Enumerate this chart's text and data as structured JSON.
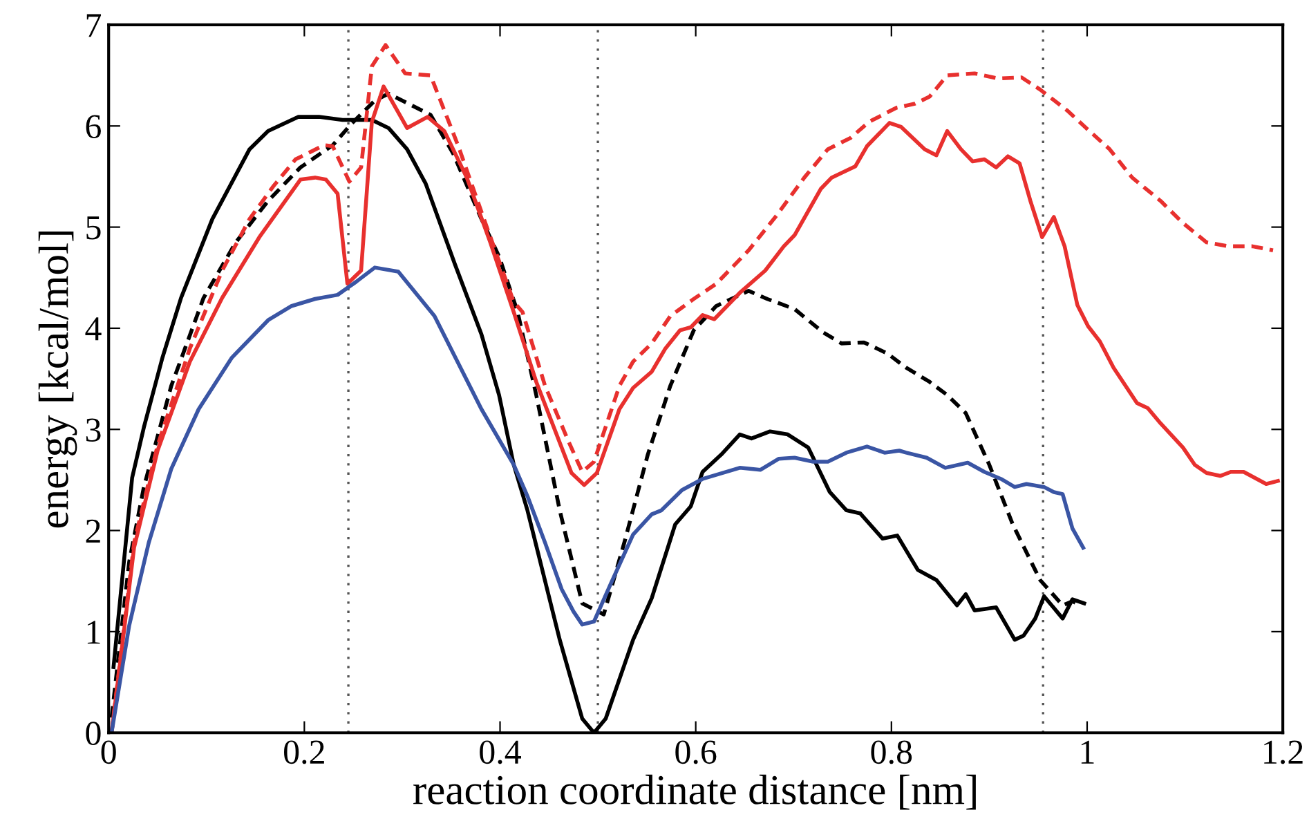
{
  "chart_data": {
    "type": "line",
    "xlabel": "reaction coordinate distance [nm]",
    "ylabel": "energy [kcal/mol]",
    "xlim": [
      0,
      1.2
    ],
    "ylim": [
      0,
      7
    ],
    "xticks": [
      0,
      0.2,
      0.4,
      0.6,
      0.8,
      1,
      1.2
    ],
    "yticks": [
      0,
      1,
      2,
      3,
      4,
      5,
      6,
      7
    ],
    "grid": false,
    "marker": "none",
    "ref_lines": [
      {
        "axis": "x",
        "value": 0.245,
        "color": "#555555",
        "line_style": "dotted"
      },
      {
        "axis": "x",
        "value": 0.5,
        "color": "#555555",
        "line_style": "dotted"
      },
      {
        "axis": "x",
        "value": 0.955,
        "color": "#555555",
        "line_style": "dotted"
      }
    ],
    "series": [
      {
        "color": "#000000",
        "line_style": "solid",
        "x": [
          0.005,
          0.024,
          0.036,
          0.055,
          0.074,
          0.106,
          0.144,
          0.163,
          0.194,
          0.215,
          0.239,
          0.269,
          0.286,
          0.305,
          0.324,
          0.354,
          0.381,
          0.399,
          0.414,
          0.428,
          0.461,
          0.484,
          0.496,
          0.508,
          0.536,
          0.555,
          0.579,
          0.595,
          0.607,
          0.626,
          0.645,
          0.657,
          0.676,
          0.694,
          0.715,
          0.737,
          0.754,
          0.768,
          0.791,
          0.806,
          0.827,
          0.846,
          0.867,
          0.876,
          0.885,
          0.907,
          0.926,
          0.935,
          0.947,
          0.956,
          0.975,
          0.985,
          0.997
        ],
        "values": [
          0.65,
          2.52,
          3.02,
          3.71,
          4.3,
          5.08,
          5.77,
          5.95,
          6.09,
          6.09,
          6.06,
          6.06,
          5.98,
          5.77,
          5.43,
          4.63,
          3.94,
          3.34,
          2.65,
          2.2,
          0.92,
          0.14,
          0.0,
          0.14,
          0.92,
          1.33,
          2.06,
          2.24,
          2.58,
          2.75,
          2.95,
          2.91,
          2.98,
          2.95,
          2.82,
          2.38,
          2.2,
          2.17,
          1.92,
          1.95,
          1.61,
          1.51,
          1.26,
          1.37,
          1.21,
          1.24,
          0.92,
          0.96,
          1.13,
          1.35,
          1.13,
          1.32,
          1.28
        ]
      },
      {
        "color": "#000000",
        "line_style": "dashed",
        "x": [
          0.003,
          0.021,
          0.036,
          0.064,
          0.097,
          0.13,
          0.163,
          0.196,
          0.229,
          0.248,
          0.272,
          0.286,
          0.329,
          0.352,
          0.381,
          0.399,
          0.418,
          0.437,
          0.461,
          0.484,
          0.506,
          0.527,
          0.551,
          0.574,
          0.598,
          0.621,
          0.654,
          0.673,
          0.701,
          0.73,
          0.749,
          0.772,
          0.796,
          0.815,
          0.839,
          0.857,
          0.876,
          0.9,
          0.924,
          0.952,
          0.975,
          0.985,
          0.994
        ],
        "values": [
          0.15,
          1.69,
          2.43,
          3.43,
          4.3,
          4.85,
          5.26,
          5.59,
          5.81,
          6.02,
          6.25,
          6.32,
          6.11,
          5.73,
          5.08,
          4.71,
          4.16,
          3.34,
          2.2,
          1.28,
          1.17,
          1.88,
          2.75,
          3.43,
          3.98,
          4.22,
          4.37,
          4.29,
          4.19,
          3.96,
          3.85,
          3.86,
          3.75,
          3.61,
          3.47,
          3.34,
          3.16,
          2.65,
          2.06,
          1.51,
          1.26,
          1.3,
          1.26
        ]
      },
      {
        "color": "#e8302e",
        "line_style": "solid",
        "x": [
          0.003,
          0.026,
          0.05,
          0.083,
          0.116,
          0.154,
          0.196,
          0.211,
          0.222,
          0.234,
          0.244,
          0.258,
          0.269,
          0.281,
          0.305,
          0.326,
          0.343,
          0.366,
          0.39,
          0.414,
          0.437,
          0.473,
          0.486,
          0.499,
          0.522,
          0.536,
          0.555,
          0.569,
          0.584,
          0.595,
          0.607,
          0.619,
          0.645,
          0.671,
          0.69,
          0.701,
          0.728,
          0.739,
          0.763,
          0.775,
          0.798,
          0.81,
          0.834,
          0.846,
          0.857,
          0.871,
          0.883,
          0.895,
          0.907,
          0.919,
          0.931,
          0.942,
          0.954,
          0.966,
          0.977,
          0.99,
          1.001,
          1.013,
          1.027,
          1.051,
          1.062,
          1.075,
          1.098,
          1.11,
          1.122,
          1.136,
          1.147,
          1.16,
          1.183,
          1.195
        ],
        "values": [
          0,
          1.83,
          2.79,
          3.67,
          4.3,
          4.9,
          5.47,
          5.49,
          5.47,
          5.33,
          4.44,
          4.57,
          6.04,
          6.39,
          5.98,
          6.09,
          5.95,
          5.49,
          4.85,
          4.16,
          3.47,
          2.57,
          2.45,
          2.57,
          3.2,
          3.41,
          3.57,
          3.8,
          3.98,
          4.01,
          4.13,
          4.09,
          4.35,
          4.57,
          4.81,
          4.92,
          5.38,
          5.49,
          5.6,
          5.8,
          6.03,
          5.99,
          5.77,
          5.71,
          5.95,
          5.77,
          5.65,
          5.67,
          5.59,
          5.7,
          5.63,
          5.26,
          4.9,
          5.1,
          4.81,
          4.23,
          4.02,
          3.87,
          3.61,
          3.26,
          3.21,
          3.06,
          2.82,
          2.65,
          2.57,
          2.54,
          2.58,
          2.58,
          2.46,
          2.49
        ]
      },
      {
        "color": "#e8302e",
        "line_style": "dashed",
        "x": [
          0.003,
          0.026,
          0.05,
          0.083,
          0.116,
          0.144,
          0.168,
          0.191,
          0.22,
          0.229,
          0.246,
          0.258,
          0.269,
          0.283,
          0.303,
          0.329,
          0.357,
          0.385,
          0.414,
          0.423,
          0.446,
          0.47,
          0.484,
          0.496,
          0.522,
          0.536,
          0.555,
          0.574,
          0.598,
          0.621,
          0.654,
          0.683,
          0.711,
          0.735,
          0.758,
          0.777,
          0.805,
          0.824,
          0.839,
          0.857,
          0.885,
          0.909,
          0.933,
          0.952,
          0.98,
          0.999,
          1.023,
          1.046,
          1.075,
          1.098,
          1.122,
          1.145,
          1.169,
          1.19
        ],
        "values": [
          0,
          1.88,
          2.84,
          3.8,
          4.57,
          5.08,
          5.4,
          5.67,
          5.81,
          5.8,
          5.45,
          5.59,
          6.59,
          6.8,
          6.52,
          6.5,
          5.81,
          5.04,
          4.26,
          4.16,
          3.43,
          2.88,
          2.58,
          2.68,
          3.43,
          3.67,
          3.85,
          4.12,
          4.29,
          4.44,
          4.77,
          5.12,
          5.49,
          5.77,
          5.88,
          6.04,
          6.18,
          6.22,
          6.29,
          6.5,
          6.52,
          6.47,
          6.48,
          6.36,
          6.15,
          5.98,
          5.77,
          5.49,
          5.26,
          5.04,
          4.85,
          4.81,
          4.81,
          4.77
        ]
      },
      {
        "color": "#3a55a4",
        "line_style": "solid",
        "x": [
          0.003,
          0.021,
          0.041,
          0.064,
          0.092,
          0.126,
          0.163,
          0.187,
          0.211,
          0.234,
          0.253,
          0.272,
          0.296,
          0.333,
          0.381,
          0.414,
          0.428,
          0.446,
          0.463,
          0.475,
          0.484,
          0.496,
          0.513,
          0.536,
          0.555,
          0.565,
          0.586,
          0.607,
          0.645,
          0.666,
          0.685,
          0.701,
          0.72,
          0.735,
          0.754,
          0.775,
          0.793,
          0.808,
          0.815,
          0.836,
          0.855,
          0.878,
          0.895,
          0.912,
          0.926,
          0.938,
          0.956,
          0.966,
          0.975,
          0.985,
          0.996
        ],
        "values": [
          0,
          1.06,
          1.88,
          2.61,
          3.2,
          3.71,
          4.08,
          4.22,
          4.29,
          4.33,
          4.46,
          4.6,
          4.56,
          4.12,
          3.2,
          2.65,
          2.34,
          1.88,
          1.42,
          1.2,
          1.07,
          1.1,
          1.47,
          1.96,
          2.16,
          2.2,
          2.4,
          2.51,
          2.62,
          2.6,
          2.71,
          2.72,
          2.68,
          2.68,
          2.77,
          2.83,
          2.77,
          2.79,
          2.77,
          2.72,
          2.62,
          2.67,
          2.58,
          2.51,
          2.43,
          2.46,
          2.43,
          2.38,
          2.36,
          2.02,
          1.83
        ]
      }
    ]
  }
}
